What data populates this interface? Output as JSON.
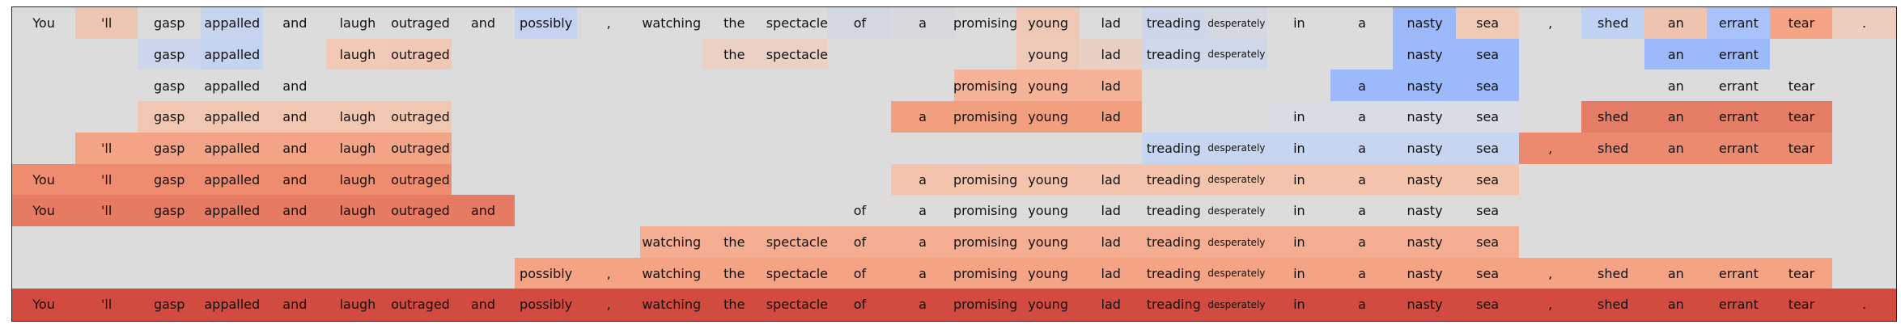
{
  "tokens": [
    "You",
    "'ll",
    "gasp",
    "appalled",
    "and",
    "laugh",
    "outraged",
    "and",
    "possibly",
    ",",
    "watching",
    "the",
    "spectacle",
    "of",
    "a",
    "promising",
    "young",
    "lad",
    "treading",
    "desperately",
    "in",
    "a",
    "nasty",
    "sea",
    ",",
    "shed",
    "an",
    "errant",
    "tear",
    "."
  ],
  "background_color": "#dcdcdc",
  "rows": [
    {
      "show": [
        1,
        1,
        1,
        1,
        1,
        1,
        1,
        1,
        1,
        1,
        1,
        1,
        1,
        1,
        1,
        1,
        1,
        1,
        1,
        1,
        1,
        1,
        1,
        1,
        1,
        1,
        1,
        1,
        1,
        1
      ],
      "colors": [
        "#dcdcdc",
        "#ecc5b3",
        "#dcdcdc",
        "#c6d4ee",
        "#dcdcdc",
        "#dcdcdc",
        "#dcdcdc",
        "#dcdcdc",
        "#c3d3f0",
        "#dcdcdc",
        "#dcdcdc",
        "#dcdcdc",
        "#dcdcdc",
        "#d3d7e2",
        "#d7d9de",
        "#dcdcdc",
        "#efc7b5",
        "#dcdcdc",
        "#ced6ea",
        "#d4d8e1",
        "#dcdcdc",
        "#dcdcdc",
        "#9db8f8",
        "#f1cab6",
        "#dcdcdc",
        "#bfd2f4",
        "#efc3ae",
        "#a9c3fa",
        "#f4a486",
        "#efcdbe"
      ]
    },
    {
      "show": [
        0,
        0,
        1,
        1,
        0,
        1,
        1,
        0,
        0,
        0,
        0,
        1,
        1,
        0,
        0,
        0,
        1,
        1,
        1,
        1,
        0,
        0,
        1,
        1,
        0,
        0,
        1,
        1,
        0,
        0
      ],
      "colors": [
        "#dcdcdc",
        "#dcdcdc",
        "#ccd6ec",
        "#c3d3f0",
        "#dcdcdc",
        "#f2c9b4",
        "#f1c8b5",
        "#dcdcdc",
        "#dcdcdc",
        "#dcdcdc",
        "#dcdcdc",
        "#ebd0c4",
        "#ebd0c4",
        "#dcdcdc",
        "#dcdcdc",
        "#dcdcdc",
        "#efcab8",
        "#e9d0c5",
        "#cfd8eb",
        "#cfd8eb",
        "#dcdcdc",
        "#dcdcdc",
        "#9cb9fb",
        "#9cb9fb",
        "#dcdcdc",
        "#dcdcdc",
        "#9cb9fb",
        "#9cb9fb",
        "#dcdcdc",
        "#dcdcdc"
      ]
    },
    {
      "show": [
        0,
        0,
        1,
        1,
        1,
        0,
        0,
        0,
        0,
        0,
        0,
        0,
        0,
        0,
        0,
        1,
        1,
        1,
        0,
        0,
        0,
        1,
        1,
        1,
        0,
        0,
        1,
        1,
        1,
        0
      ],
      "colors": [
        "#dcdcdc",
        "#dcdcdc",
        "#dcdcdc",
        "#dcdcdc",
        "#dcdcdc",
        "#dcdcdc",
        "#dcdcdc",
        "#dcdcdc",
        "#dcdcdc",
        "#dcdcdc",
        "#dcdcdc",
        "#dcdcdc",
        "#dcdcdc",
        "#dcdcdc",
        "#dcdcdc",
        "#f5b498",
        "#f5b498",
        "#f5b498",
        "#dcdcdc",
        "#dcdcdc",
        "#dcdcdc",
        "#9cb9fb",
        "#9cb9fb",
        "#9cb9fb",
        "#dcdcdc",
        "#dcdcdc",
        "#dcdcdc",
        "#dcdcdc",
        "#dcdcdc",
        "#dcdcdc"
      ]
    },
    {
      "show": [
        0,
        0,
        1,
        1,
        1,
        1,
        1,
        0,
        0,
        0,
        0,
        0,
        0,
        0,
        1,
        1,
        1,
        1,
        0,
        0,
        1,
        1,
        1,
        1,
        0,
        1,
        1,
        1,
        1,
        0
      ],
      "colors": [
        "#dcdcdc",
        "#dcdcdc",
        "#f2c7b2",
        "#f2c7b2",
        "#f2c7b2",
        "#f2c7b2",
        "#f2c7b2",
        "#dcdcdc",
        "#dcdcdc",
        "#dcdcdc",
        "#dcdcdc",
        "#dcdcdc",
        "#dcdcdc",
        "#dcdcdc",
        "#f29f80",
        "#f29f80",
        "#f29f80",
        "#f29f80",
        "#dcdcdc",
        "#dcdcdc",
        "#d9dce3",
        "#d9dce3",
        "#d9dce3",
        "#d9dce3",
        "#dcdcdc",
        "#e57d66",
        "#e57d66",
        "#e57d66",
        "#e57d66",
        "#dcdcdc"
      ]
    },
    {
      "show": [
        0,
        1,
        1,
        1,
        1,
        1,
        1,
        0,
        0,
        0,
        0,
        0,
        0,
        0,
        0,
        0,
        0,
        0,
        1,
        1,
        1,
        1,
        1,
        1,
        1,
        1,
        1,
        1,
        1,
        0
      ],
      "colors": [
        "#dcdcdc",
        "#f4a486",
        "#f4a486",
        "#f4a486",
        "#f4a486",
        "#f4a486",
        "#f4a486",
        "#dcdcdc",
        "#dcdcdc",
        "#dcdcdc",
        "#dcdcdc",
        "#dcdcdc",
        "#dcdcdc",
        "#dcdcdc",
        "#dcdcdc",
        "#dcdcdc",
        "#dcdcdc",
        "#dcdcdc",
        "#c6d6f0",
        "#c6d6f0",
        "#c6d6f0",
        "#c6d6f0",
        "#c6d6f0",
        "#c6d6f0",
        "#eb8a6e",
        "#eb8a6e",
        "#eb8a6e",
        "#eb8a6e",
        "#eb8a6e",
        "#dcdcdc"
      ]
    },
    {
      "show": [
        1,
        1,
        1,
        1,
        1,
        1,
        1,
        0,
        0,
        0,
        0,
        0,
        0,
        0,
        1,
        1,
        1,
        1,
        1,
        1,
        1,
        1,
        1,
        1,
        0,
        0,
        0,
        0,
        0,
        0
      ],
      "colors": [
        "#ef8c6f",
        "#ef8c6f",
        "#ef8c6f",
        "#ef8c6f",
        "#ef8c6f",
        "#ef8c6f",
        "#ef8c6f",
        "#dcdcdc",
        "#dcdcdc",
        "#dcdcdc",
        "#dcdcdc",
        "#dcdcdc",
        "#dcdcdc",
        "#dcdcdc",
        "#f4c3ab",
        "#f4c3ab",
        "#f4c3ab",
        "#f4c3ab",
        "#f4c3ab",
        "#f4c3ab",
        "#f4c3ab",
        "#f4c3ab",
        "#f4c3ab",
        "#f4c3ab",
        "#dcdcdc",
        "#dcdcdc",
        "#dcdcdc",
        "#dcdcdc",
        "#dcdcdc",
        "#dcdcdc"
      ]
    },
    {
      "show": [
        1,
        1,
        1,
        1,
        1,
        1,
        1,
        1,
        0,
        0,
        0,
        0,
        0,
        1,
        1,
        1,
        1,
        1,
        1,
        1,
        1,
        1,
        1,
        1,
        0,
        0,
        0,
        0,
        0,
        0
      ],
      "colors": [
        "#e67a63",
        "#e67a63",
        "#e67a63",
        "#e67a63",
        "#e67a63",
        "#e67a63",
        "#e67a63",
        "#e67a63",
        "#dcdcdc",
        "#dcdcdc",
        "#dcdcdc",
        "#dcdcdc",
        "#dcdcdc",
        "#dddcdb",
        "#dddcdb",
        "#dddcdb",
        "#dddcdb",
        "#dddcdb",
        "#dddcdb",
        "#dddcdb",
        "#dddcdb",
        "#dddcdb",
        "#dddcdb",
        "#dddcdb",
        "#dcdcdc",
        "#dcdcdc",
        "#dcdcdc",
        "#dcdcdc",
        "#dcdcdc",
        "#dcdcdc"
      ]
    },
    {
      "show": [
        0,
        0,
        0,
        0,
        0,
        0,
        0,
        0,
        0,
        0,
        1,
        1,
        1,
        1,
        1,
        1,
        1,
        1,
        1,
        1,
        1,
        1,
        1,
        1,
        0,
        0,
        0,
        0,
        0,
        0
      ],
      "colors": [
        "#dcdcdc",
        "#dcdcdc",
        "#dcdcdc",
        "#dcdcdc",
        "#dcdcdc",
        "#dcdcdc",
        "#dcdcdc",
        "#dcdcdc",
        "#dcdcdc",
        "#dcdcdc",
        "#f4ad91",
        "#f4ad91",
        "#f4ad91",
        "#f4ad91",
        "#f4ad91",
        "#f4ad91",
        "#f4ad91",
        "#f4ad91",
        "#f4ad91",
        "#f4ad91",
        "#f4ad91",
        "#f4ad91",
        "#f4ad91",
        "#f4ad91",
        "#dcdcdc",
        "#dcdcdc",
        "#dcdcdc",
        "#dcdcdc",
        "#dcdcdc",
        "#dcdcdc"
      ]
    },
    {
      "show": [
        0,
        0,
        0,
        0,
        0,
        0,
        0,
        0,
        1,
        1,
        1,
        1,
        1,
        1,
        1,
        1,
        1,
        1,
        1,
        1,
        1,
        1,
        1,
        1,
        1,
        1,
        1,
        1,
        1,
        0
      ],
      "colors": [
        "#dcdcdc",
        "#dcdcdc",
        "#dcdcdc",
        "#dcdcdc",
        "#dcdcdc",
        "#dcdcdc",
        "#dcdcdc",
        "#dcdcdc",
        "#f4a385",
        "#f4a385",
        "#f4a385",
        "#f4a385",
        "#f4a385",
        "#f4a385",
        "#f4a385",
        "#f4a385",
        "#f4a385",
        "#f4a385",
        "#f4a385",
        "#f4a385",
        "#f4a385",
        "#f4a385",
        "#f4a385",
        "#f4a385",
        "#f4a385",
        "#f4a385",
        "#f4a385",
        "#f4a385",
        "#f4a385",
        "#dcdcdc"
      ]
    },
    {
      "show": [
        1,
        1,
        1,
        1,
        1,
        1,
        1,
        1,
        1,
        1,
        1,
        1,
        1,
        1,
        1,
        1,
        1,
        1,
        1,
        1,
        1,
        1,
        1,
        1,
        1,
        1,
        1,
        1,
        1,
        1
      ],
      "colors": [
        "#d24b40",
        "#d24b40",
        "#d24b40",
        "#d24b40",
        "#d24b40",
        "#d24b40",
        "#d24b40",
        "#d24b40",
        "#d24b40",
        "#d24b40",
        "#d24b40",
        "#d24b40",
        "#d24b40",
        "#d24b40",
        "#d24b40",
        "#d24b40",
        "#d24b40",
        "#d24b40",
        "#d24b40",
        "#d24b40",
        "#d24b40",
        "#d24b40",
        "#d24b40",
        "#d24b40",
        "#d24b40",
        "#d24b40",
        "#d24b40",
        "#d24b40",
        "#d24b40",
        "#d24b40"
      ]
    }
  ]
}
